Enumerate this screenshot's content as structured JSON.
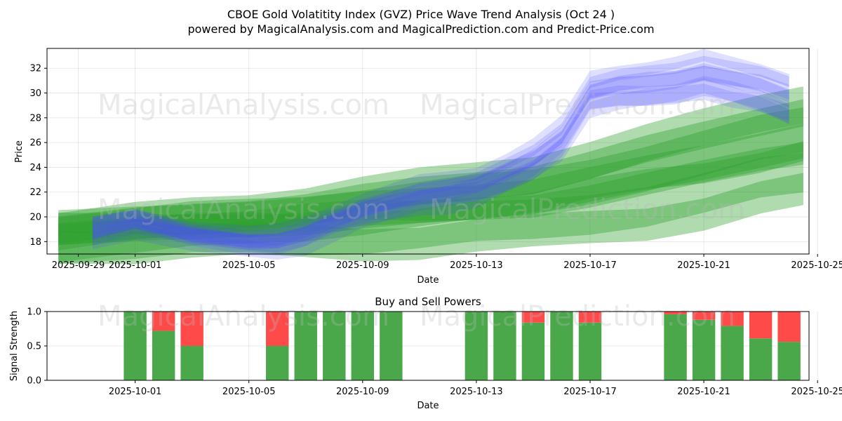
{
  "header": {
    "title": "CBOE Gold Volatitity Index (GVZ) Price Wave Trend Analysis (Oct 24 )",
    "subtitle": "powered by MagicalAnalysis.com and MagicalPrediction.com and Predict-Price.com"
  },
  "watermarks": [
    "MagicalAnalysis.com",
    "MagicalPrediction.com"
  ],
  "chart_data": [
    {
      "type": "area",
      "title": "",
      "xlabel": "Date",
      "ylabel": "Price",
      "xlim": [
        -2.1,
        24.7
      ],
      "ylim": [
        17.0,
        33.6
      ],
      "grid": true,
      "x_ticks": [
        {
          "day": -1,
          "label": "2025-09-29"
        },
        {
          "day": 1,
          "label": "2025-10-01"
        },
        {
          "day": 5,
          "label": "2025-10-05"
        },
        {
          "day": 9,
          "label": "2025-10-09"
        },
        {
          "day": 13,
          "label": "2025-10-13"
        },
        {
          "day": 17,
          "label": "2025-10-17"
        },
        {
          "day": 21,
          "label": "2025-10-21"
        },
        {
          "day": 25,
          "label": "2025-10-25"
        }
      ],
      "y_ticks": [
        18,
        20,
        22,
        24,
        26,
        28,
        30,
        32
      ],
      "series": [
        {
          "name": "historical-wave-blue",
          "color": "#4d4dff",
          "x": [
            -0.5,
            1,
            3,
            5,
            6,
            7,
            8,
            9,
            10,
            11,
            12,
            13,
            14,
            15,
            16,
            17,
            18,
            19,
            20,
            21,
            22,
            23,
            24
          ],
          "y": [
            18.8,
            19.5,
            18.5,
            18.1,
            18.1,
            18.6,
            19.6,
            20.6,
            21.3,
            21.9,
            22.1,
            22.5,
            23.6,
            24.8,
            26.5,
            30.1,
            30.6,
            30.9,
            31.2,
            31.7,
            31.1,
            30.6,
            29.8
          ]
        },
        {
          "name": "projection-wave-green",
          "color": "#2ca02c",
          "x": [
            -1.7,
            1,
            3,
            5,
            7,
            9,
            11,
            13,
            15,
            17,
            19,
            21,
            23,
            24.5
          ],
          "y": [
            18.6,
            18.9,
            19.2,
            19.4,
            19.6,
            19.9,
            20.2,
            20.6,
            21.0,
            21.8,
            22.6,
            23.5,
            24.6,
            25.3
          ]
        }
      ]
    },
    {
      "type": "bar",
      "title": "Buy and Sell Powers",
      "xlabel": "Date",
      "ylabel": "Signal Strength",
      "ylim": [
        0,
        1
      ],
      "y_ticks": [
        0.0,
        0.5,
        1.0
      ],
      "y_tick_labels": [
        "0.0",
        "0.5",
        "1.0"
      ],
      "x_ticks": [
        {
          "day": 1,
          "label": "2025-10-01"
        },
        {
          "day": 5,
          "label": "2025-10-05"
        },
        {
          "day": 9,
          "label": "2025-10-09"
        },
        {
          "day": 13,
          "label": "2025-10-13"
        },
        {
          "day": 17,
          "label": "2025-10-17"
        },
        {
          "day": 21,
          "label": "2025-10-21"
        },
        {
          "day": 25,
          "label": "2025-10-25"
        }
      ],
      "series": [
        {
          "name": "Buy",
          "color": "#4aa84a",
          "x": [
            1,
            2,
            3,
            6,
            7,
            8,
            9,
            10,
            13,
            14,
            15,
            16,
            17,
            20,
            21,
            22,
            23,
            24
          ],
          "values": [
            1.0,
            0.72,
            0.5,
            0.5,
            1.0,
            1.0,
            1.0,
            1.0,
            1.0,
            1.0,
            0.84,
            1.0,
            0.84,
            0.96,
            0.88,
            0.79,
            0.61,
            0.56
          ]
        },
        {
          "name": "Sell",
          "color": "#ff4a4a",
          "x": [
            1,
            2,
            3,
            6,
            7,
            8,
            9,
            10,
            13,
            14,
            15,
            16,
            17,
            20,
            21,
            22,
            23,
            24
          ],
          "values": [
            0.0,
            0.28,
            0.5,
            0.5,
            0.0,
            0.0,
            0.0,
            0.0,
            0.0,
            0.0,
            0.16,
            0.0,
            0.16,
            0.04,
            0.12,
            0.21,
            0.39,
            0.44
          ]
        }
      ]
    }
  ]
}
